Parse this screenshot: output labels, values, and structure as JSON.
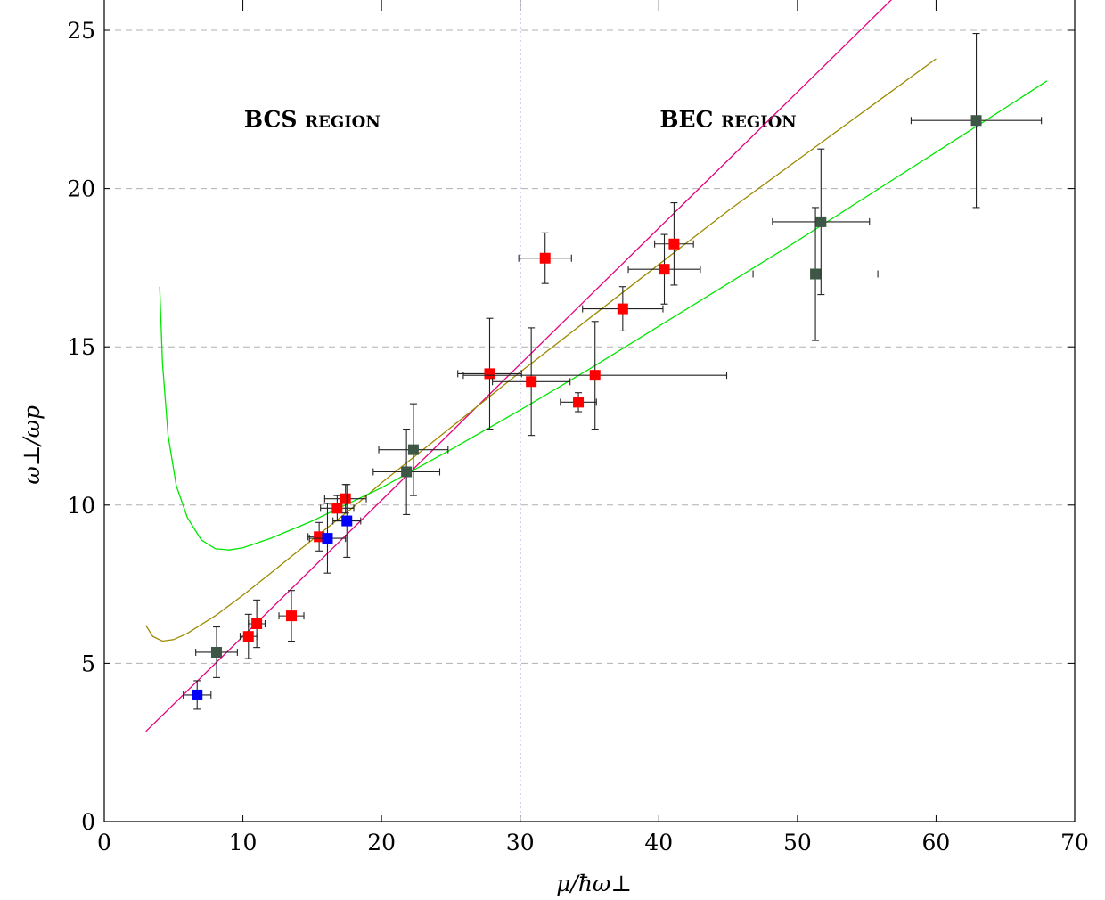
{
  "chart_data": {
    "type": "scatter",
    "xlabel": "μ/ħω⊥",
    "ylabel": "ω⊥/ωp",
    "xlim": [
      0,
      70
    ],
    "ylim": [
      0,
      26
    ],
    "xticks": [
      0,
      10,
      20,
      30,
      40,
      50,
      60,
      70
    ],
    "yticks": [
      0,
      5,
      10,
      15,
      20,
      25
    ],
    "x_tick_labels": [
      "0",
      "10",
      "20",
      "30",
      "40",
      "50",
      "60",
      "70"
    ],
    "y_tick_labels": [
      "0",
      "5",
      "10",
      "15",
      "20",
      "25"
    ],
    "grid": "horizontal dashed at y ticks",
    "divider_x": 30,
    "annotations": [
      {
        "text": "BCS region",
        "x": 15,
        "y": 22.2
      },
      {
        "text": "BEC region",
        "x": 45,
        "y": 22.2
      }
    ],
    "series": [
      {
        "color": "#ff0000",
        "points": [
          {
            "x": 10.4,
            "y": 5.85,
            "xerr": 0.6,
            "yerr": 0.7
          },
          {
            "x": 11.0,
            "y": 6.25,
            "xerr": 0.6,
            "yerr": 0.75
          },
          {
            "x": 13.5,
            "y": 6.5,
            "xerr": 0.9,
            "yerr": 0.8
          },
          {
            "x": 15.5,
            "y": 9.0,
            "xerr": 0.8,
            "yerr": 0.45
          },
          {
            "x": 16.8,
            "y": 9.9,
            "xerr": 1.2,
            "yerr": 0.4
          },
          {
            "x": 17.4,
            "y": 10.2,
            "xerr": 1.5,
            "yerr": 0.45
          },
          {
            "x": 27.8,
            "y": 14.15,
            "xerr": 2.3,
            "yerr": 1.75
          },
          {
            "x": 30.8,
            "y": 13.9,
            "xerr": 2.8,
            "yerr": 1.7
          },
          {
            "x": 31.8,
            "y": 17.8,
            "xerr": 1.9,
            "yerr": 0.8
          },
          {
            "x": 34.2,
            "y": 13.25,
            "xerr": 1.3,
            "yerr": 0.3
          },
          {
            "x": 35.4,
            "y": 14.1,
            "xerr": 9.5,
            "yerr": 1.7
          },
          {
            "x": 37.4,
            "y": 16.2,
            "xerr": 2.9,
            "yerr": 0.7
          },
          {
            "x": 40.4,
            "y": 17.45,
            "xerr": 2.6,
            "yerr": 1.1
          },
          {
            "x": 41.1,
            "y": 18.25,
            "xerr": 1.4,
            "yerr": 1.3
          }
        ]
      },
      {
        "color": "#0000ff",
        "points": [
          {
            "x": 6.7,
            "y": 4.0,
            "xerr": 1.0,
            "yerr": 0.45
          },
          {
            "x": 16.1,
            "y": 8.95,
            "xerr": 1.3,
            "yerr": 1.1
          },
          {
            "x": 17.5,
            "y": 9.5,
            "xerr": 1.0,
            "yerr": 1.15
          }
        ]
      },
      {
        "color": "#3d5645",
        "points": [
          {
            "x": 8.1,
            "y": 5.35,
            "xerr": 1.5,
            "yerr": 0.8
          },
          {
            "x": 21.8,
            "y": 11.05,
            "xerr": 2.4,
            "yerr": 1.35
          },
          {
            "x": 22.3,
            "y": 11.75,
            "xerr": 2.5,
            "yerr": 1.45
          },
          {
            "x": 51.3,
            "y": 17.3,
            "xerr": 4.5,
            "yerr": 2.1
          },
          {
            "x": 51.7,
            "y": 18.95,
            "xerr": 3.5,
            "yerr": 2.3
          },
          {
            "x": 62.9,
            "y": 22.15,
            "xerr": 4.7,
            "yerr": 2.75
          }
        ]
      }
    ],
    "curves": [
      {
        "color": "#e6007e",
        "points": [
          [
            3,
            2.85
          ],
          [
            10,
            5.85
          ],
          [
            20,
            10.15
          ],
          [
            30,
            14.45
          ],
          [
            40,
            18.75
          ],
          [
            50,
            23.05
          ],
          [
            60,
            27.35
          ]
        ]
      },
      {
        "color": "#9c8a00",
        "points": [
          [
            3,
            6.2
          ],
          [
            3.5,
            5.85
          ],
          [
            4.2,
            5.7
          ],
          [
            5,
            5.75
          ],
          [
            6,
            5.95
          ],
          [
            8,
            6.5
          ],
          [
            10,
            7.15
          ],
          [
            12,
            7.85
          ],
          [
            14,
            8.55
          ],
          [
            16,
            9.25
          ],
          [
            18,
            9.95
          ],
          [
            20,
            10.7
          ],
          [
            25,
            12.45
          ],
          [
            30,
            14.2
          ],
          [
            35,
            15.9
          ],
          [
            40,
            17.6
          ],
          [
            45,
            19.3
          ],
          [
            50,
            20.9
          ],
          [
            55,
            22.5
          ],
          [
            60,
            24.1
          ]
        ]
      },
      {
        "color": "#00e600",
        "points": [
          [
            4.0,
            16.9
          ],
          [
            4.2,
            14.5
          ],
          [
            4.6,
            12.2
          ],
          [
            5.2,
            10.6
          ],
          [
            6.0,
            9.6
          ],
          [
            7.0,
            8.9
          ],
          [
            8.0,
            8.62
          ],
          [
            9.0,
            8.58
          ],
          [
            10.0,
            8.65
          ],
          [
            12.0,
            8.95
          ],
          [
            15.0,
            9.5
          ],
          [
            20.0,
            10.55
          ],
          [
            25.0,
            11.75
          ],
          [
            30.0,
            13.0
          ],
          [
            35.0,
            14.3
          ],
          [
            40.0,
            15.65
          ],
          [
            45.0,
            17.0
          ],
          [
            50.0,
            18.35
          ],
          [
            55.0,
            19.75
          ],
          [
            60.0,
            21.15
          ],
          [
            65.0,
            22.55
          ],
          [
            68.0,
            23.4
          ]
        ]
      }
    ]
  }
}
